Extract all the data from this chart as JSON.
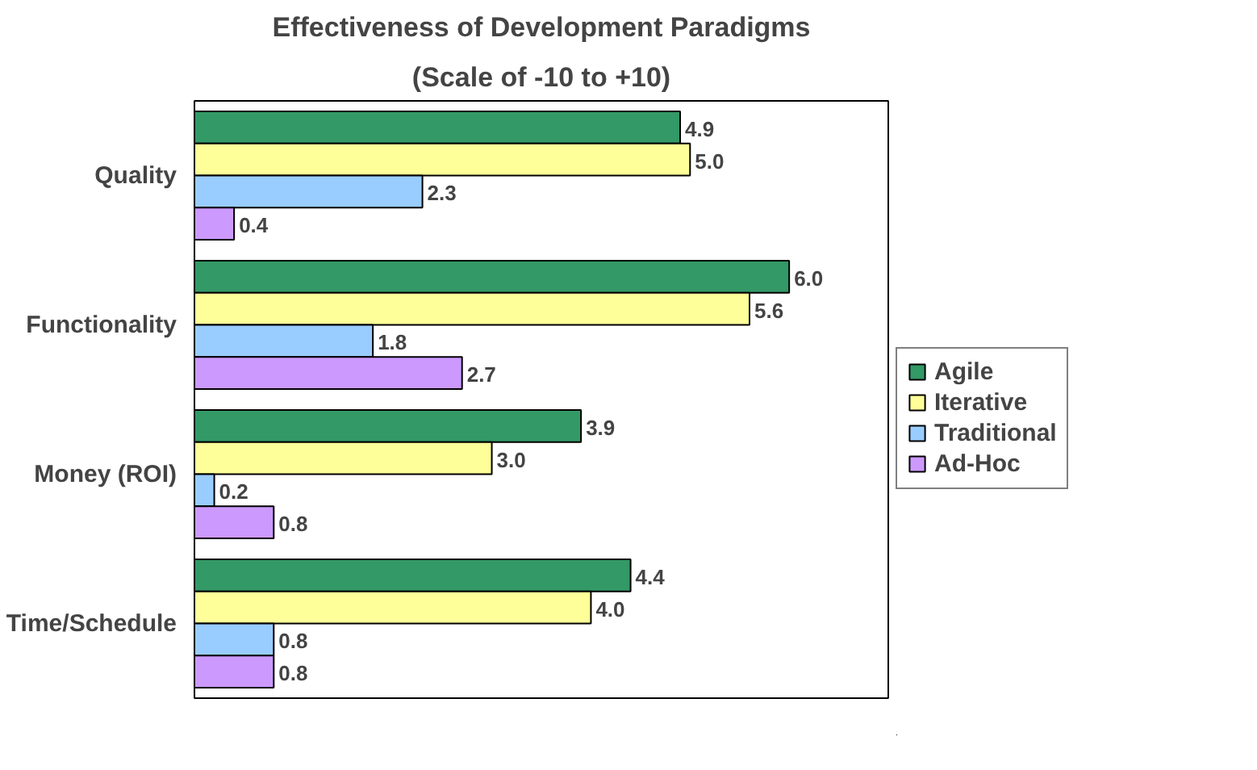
{
  "chart_data": {
    "type": "bar",
    "orientation": "horizontal",
    "title": "Effectiveness of Development Paradigms",
    "subtitle": "(Scale of -10 to +10)",
    "categories": [
      "Quality",
      "Functionality",
      "Money (ROI)",
      "Time/Schedule"
    ],
    "series": [
      {
        "name": "Agile",
        "color": "#339966",
        "values": [
          4.9,
          6.0,
          3.9,
          4.4
        ],
        "value_labels": [
          "4.9",
          "6.0",
          "3.9",
          "4.4"
        ]
      },
      {
        "name": "Iterative",
        "color": "#ffff99",
        "values": [
          5.0,
          5.6,
          3.0,
          4.0
        ],
        "value_labels": [
          "5.0",
          "5.6",
          "3.0",
          "4.0"
        ]
      },
      {
        "name": "Traditional",
        "color": "#99ccff",
        "values": [
          2.3,
          1.8,
          0.2,
          0.8
        ],
        "value_labels": [
          "2.3",
          "1.8",
          "0.2",
          "0.8"
        ]
      },
      {
        "name": "Ad-Hoc",
        "color": "#cc99ff",
        "values": [
          0.4,
          2.7,
          0.8,
          0.8
        ],
        "value_labels": [
          "0.4",
          "2.7",
          "0.8",
          "0.8"
        ]
      }
    ],
    "xlim": [
      0,
      7
    ],
    "grid": false,
    "legend": "right"
  }
}
